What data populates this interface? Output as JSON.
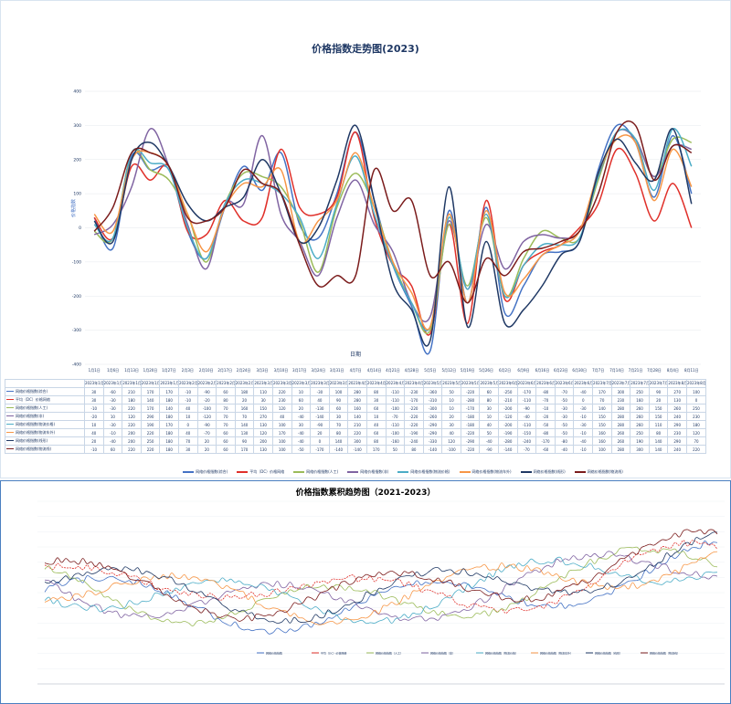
{
  "top": {
    "title": "价格指数走势图(2023)",
    "ylabel": "价格指数",
    "xlabel": "日期",
    "table_headers": [
      "2023年1月1日",
      "2023年1月6日",
      "2023年1月13日",
      "2023年1月20日",
      "2023年1月27日",
      "2023年2月3日",
      "2023年2月10日",
      "2023年2月17日",
      "2023年2月24日",
      "2023年3月3日",
      "2023年3月10日",
      "2023年3月17日",
      "2023年3月24日",
      "2023年3月31日",
      "2023年4月7日",
      "2023年4月14日",
      "2023年4月21日",
      "2023年4月28日",
      "2023年5月5日",
      "2023年5月12日",
      "2023年5月19日",
      "2023年5月26日",
      "2023年6月2日",
      "2023年6月9日",
      "2023年6月16日",
      "2023年6月23日",
      "2023年6月30日",
      "2023年7月7日",
      "2023年7月14日",
      "2023年7月21日",
      "2023年7月28日",
      "2023年8月4日",
      "2023年8月11日"
    ]
  },
  "chart_data": [
    {
      "type": "line",
      "title": "价格指数走势图(2023)",
      "xlabel": "日期",
      "ylabel": "价格指数",
      "ylim": [
        -400,
        400
      ],
      "yticks": [
        -400,
        -300,
        -200,
        -100,
        0,
        100,
        200,
        300,
        400
      ],
      "grid": true,
      "legend": "bottom",
      "categories": [
        "1月1日",
        "1月6日",
        "1月13日",
        "1月20日",
        "1月27日",
        "2月3日",
        "2月10日",
        "2月17日",
        "2月24日",
        "3月3日",
        "3月10日",
        "3月17日",
        "3月24日",
        "3月31日",
        "4月7日",
        "4月14日",
        "4月21日",
        "4月28日",
        "5月5日",
        "5月12日",
        "5月19日",
        "5月26日",
        "6月2日",
        "6月9日",
        "6月16日",
        "6月23日",
        "6月30日",
        "7月7日",
        "7月14日",
        "7月21日",
        "7月28日",
        "8月4日",
        "8月11日"
      ],
      "series": [
        {
          "name": "网络价格指数(综合)",
          "color": "#4472c4",
          "values": [
            30,
            -60,
            210,
            170,
            170,
            -10,
            -90,
            60,
            180,
            110,
            220,
            10,
            -30,
            100,
            280,
            80,
            -110,
            -230,
            -360,
            50,
            -220,
            60,
            -250,
            -170,
            -80,
            -70,
            -40,
            170,
            300,
            250,
            90,
            270,
            100
          ]
        },
        {
          "name": "平均（DC）价格网络",
          "color": "#e0302a",
          "values": [
            30,
            -30,
            180,
            140,
            180,
            -10,
            -20,
            80,
            20,
            30,
            230,
            60,
            40,
            90,
            280,
            30,
            -110,
            -170,
            -310,
            10,
            -280,
            80,
            -210,
            -110,
            -70,
            -50,
            0,
            70,
            230,
            160,
            20,
            130,
            0
          ]
        },
        {
          "name": "网络价格指数(人工)",
          "color": "#9bbb59",
          "values": [
            -10,
            -30,
            220,
            170,
            140,
            40,
            -100,
            70,
            160,
            150,
            120,
            20,
            -130,
            60,
            160,
            60,
            -100,
            -220,
            -300,
            10,
            -170,
            30,
            -200,
            -90,
            -10,
            -30,
            -30,
            140,
            280,
            260,
            150,
            260,
            250
          ]
        },
        {
          "name": "网络价格指数(非)",
          "color": "#8064a2",
          "values": [
            -20,
            10,
            120,
            290,
            180,
            10,
            -120,
            70,
            70,
            270,
            40,
            -40,
            -140,
            30,
            140,
            10,
            -70,
            -220,
            -260,
            20,
            -180,
            10,
            -120,
            -40,
            -20,
            -30,
            -10,
            150,
            280,
            260,
            150,
            240,
            230
          ]
        },
        {
          "name": "网络价格指数(物流价格)",
          "color": "#4bacc6",
          "values": [
            10,
            -30,
            220,
            190,
            170,
            0,
            -90,
            70,
            140,
            130,
            100,
            30,
            -90,
            70,
            210,
            40,
            -110,
            -220,
            -290,
            30,
            -180,
            40,
            -200,
            -110,
            -50,
            -50,
            -30,
            150,
            280,
            260,
            110,
            290,
            180
          ]
        },
        {
          "name": "网络价格指数(物流车外)",
          "color": "#f79646",
          "values": [
            40,
            -10,
            200,
            220,
            180,
            40,
            -70,
            60,
            130,
            120,
            170,
            -40,
            20,
            80,
            220,
            60,
            -100,
            -190,
            -290,
            40,
            -220,
            50,
            -190,
            -150,
            -80,
            -50,
            -10,
            160,
            260,
            250,
            80,
            230,
            120
          ]
        },
        {
          "name": "网络价格指数(线形)",
          "color": "#1f3864",
          "values": [
            20,
            -40,
            200,
            250,
            180,
            70,
            20,
            60,
            90,
            200,
            100,
            -40,
            0,
            140,
            300,
            80,
            -160,
            -240,
            -330,
            120,
            -290,
            -40,
            -280,
            -240,
            -170,
            -80,
            -40,
            160,
            260,
            190,
            140,
            290,
            70
          ]
        },
        {
          "name": "网络价格指数(物流线)",
          "color": "#7b1c1c",
          "values": [
            -10,
            60,
            220,
            220,
            180,
            30,
            20,
            60,
            170,
            130,
            100,
            -50,
            -170,
            -140,
            -140,
            170,
            50,
            80,
            -140,
            -100,
            -220,
            -90,
            -140,
            -70,
            -60,
            -40,
            -10,
            100,
            280,
            300,
            140,
            240,
            220
          ]
        }
      ]
    },
    {
      "type": "line",
      "title": "价格指数累积趋势图（2021-2023）",
      "legend": "bottom",
      "grid": true,
      "series": [
        {
          "name": "网络价格指数",
          "color": "#4472c4"
        },
        {
          "name": "平均（DC）价格网络",
          "color": "#e0302a"
        },
        {
          "name": "网络价格指数（人工）",
          "color": "#9bbb59"
        },
        {
          "name": "网络价格指数（非）",
          "color": "#8064a2"
        },
        {
          "name": "网络价格指数（物流价格）",
          "color": "#4bacc6"
        },
        {
          "name": "网络价格指数（物流车外）",
          "color": "#f79646"
        },
        {
          "name": "网络价格指数（线形）",
          "color": "#1f3864"
        },
        {
          "name": "网络价格指数（物流线）",
          "color": "#7b1c1c"
        }
      ]
    }
  ]
}
